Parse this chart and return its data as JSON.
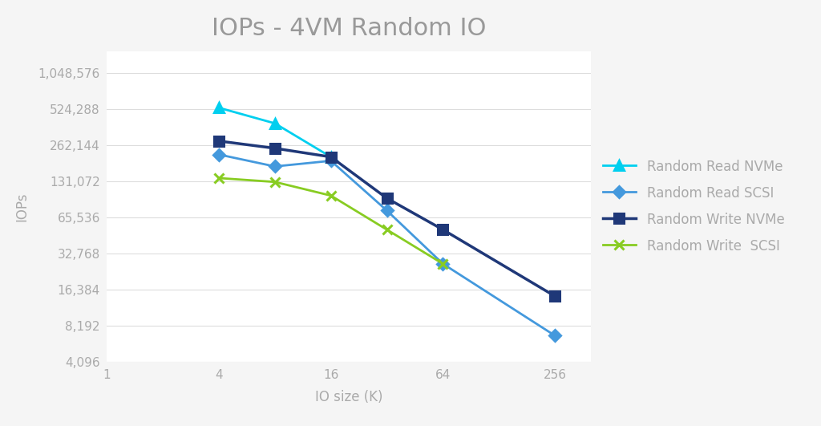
{
  "title": "IOPs - 4VM Random IO",
  "xlabel": "IO size (K)",
  "ylabel": "IOPs",
  "series": [
    {
      "label": "Random Read NVMe",
      "color": "#00CFEF",
      "marker": "^",
      "markersize": 9,
      "linewidth": 2.0,
      "x": [
        4,
        8,
        16
      ],
      "y": [
        540000,
        400000,
        210000
      ]
    },
    {
      "label": "Random Read SCSI",
      "color": "#4499DD",
      "marker": "D",
      "markersize": 7,
      "linewidth": 2.0,
      "x": [
        4,
        8,
        16,
        32,
        64,
        256
      ],
      "y": [
        220000,
        175000,
        195000,
        75000,
        27000,
        6800
      ]
    },
    {
      "label": "Random Write NVMe",
      "color": "#1F3878",
      "marker": "s",
      "markersize": 8,
      "linewidth": 2.5,
      "x": [
        4,
        8,
        16,
        32,
        64,
        256
      ],
      "y": [
        285000,
        248000,
        210000,
        95000,
        52000,
        14500
      ]
    },
    {
      "label": "Random Write  SCSI",
      "color": "#88CC22",
      "marker": "x",
      "markersize": 9,
      "linewidth": 2.0,
      "x": [
        4,
        8,
        16,
        32,
        64
      ],
      "y": [
        140000,
        130000,
        100000,
        52000,
        27000
      ]
    }
  ],
  "xticks": [
    1,
    4,
    16,
    64,
    256
  ],
  "xtick_labels": [
    "1",
    "4",
    "16",
    "64",
    "256"
  ],
  "yticks": [
    4096,
    8192,
    16384,
    32768,
    65536,
    131072,
    262144,
    524288,
    1048576
  ],
  "ytick_labels": [
    "4,096",
    "8,192",
    "16,384",
    "32,768",
    "65,536",
    "131,072",
    "262,144",
    "524,288",
    "1,048,576"
  ],
  "xlim": [
    1,
    400
  ],
  "ylim_low": 4096,
  "ylim_high": 1600000,
  "background_color": "#f5f5f5",
  "plot_bg_color": "#ffffff",
  "title_color": "#999999",
  "axis_color": "#aaaaaa",
  "tick_color": "#aaaaaa",
  "grid_color": "#dddddd",
  "title_fontsize": 22,
  "label_fontsize": 12,
  "tick_fontsize": 11,
  "legend_fontsize": 12,
  "legend_text_color": "#aaaaaa"
}
